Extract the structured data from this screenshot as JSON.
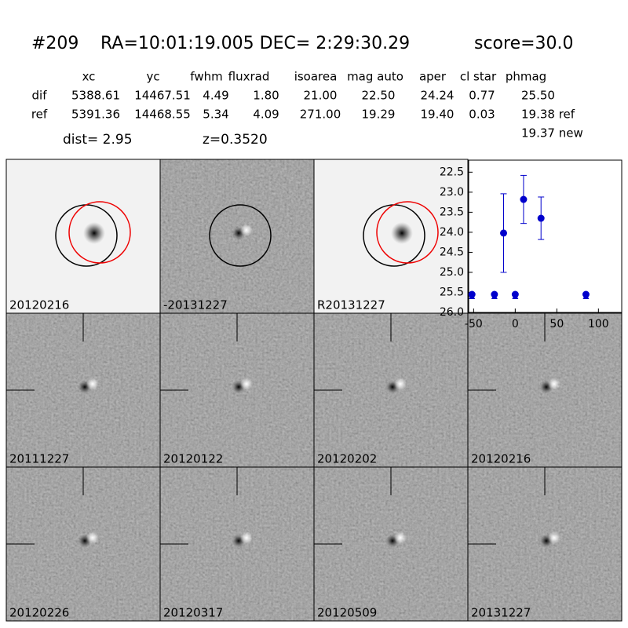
{
  "header": {
    "id": "#209",
    "coords": "RA=10:01:19.005 DEC= 2:29:30.29",
    "score": "score=30.0"
  },
  "table": {
    "columns": [
      "xc",
      "yc",
      "fwhm",
      "fluxrad",
      "isoarea",
      "mag auto",
      "aper",
      "cl star",
      "phmag"
    ],
    "rows": [
      [
        "dif",
        "5388.61",
        "14467.51",
        "4.49",
        "1.80",
        "21.00",
        "22.50",
        "24.24",
        "0.77",
        "25.50"
      ],
      [
        "ref",
        "5391.36",
        "14468.55",
        "5.34",
        "4.09",
        "271.00",
        "19.29",
        "19.40",
        "0.03",
        "19.38 ref"
      ]
    ],
    "extra": "19.37 new"
  },
  "dist": "dist=  2.95",
  "redshift": "z=0.3520",
  "panels": [
    {
      "label": "20120216"
    },
    {
      "label": "-20131227"
    },
    {
      "label": "R20131227"
    },
    {
      "label": "20111227"
    },
    {
      "label": "20120122"
    },
    {
      "label": "20120202"
    },
    {
      "label": "20120216",
      "label_color": "#ff0000"
    },
    {
      "label": "20120226"
    },
    {
      "label": "20120317"
    },
    {
      "label": "20120509"
    },
    {
      "label": "20131227"
    }
  ],
  "chart_data": {
    "type": "scatter",
    "xlim": [
      -56,
      128
    ],
    "ylim": [
      26.0,
      22.2
    ],
    "xticks": [
      -50,
      0,
      50,
      100
    ],
    "yticks": [
      {
        "value": 22.5,
        "label": "22.5"
      },
      {
        "value": 23.0,
        "label": "23.0"
      },
      {
        "value": 23.5,
        "label": "23.5"
      },
      {
        "value": 24.0,
        "label": "24.0"
      },
      {
        "value": 24.5,
        "label": "24.5"
      },
      {
        "value": 25.0,
        "label": "25.0"
      },
      {
        "value": 25.5,
        "label": "25.5"
      },
      {
        "value": 26.0,
        "label": "26.0"
      }
    ],
    "series": [
      {
        "color": "#0000cc",
        "x": [
          -14,
          10,
          31
        ],
        "values": [
          24.02,
          23.18,
          23.65
        ],
        "errors": [
          0.98,
          0.6,
          0.53
        ]
      },
      {
        "color": "#0000cc",
        "marker": "limit",
        "x": [
          -52,
          -25,
          0,
          85
        ],
        "values": [
          25.55,
          25.55,
          25.55,
          25.55
        ]
      }
    ]
  }
}
